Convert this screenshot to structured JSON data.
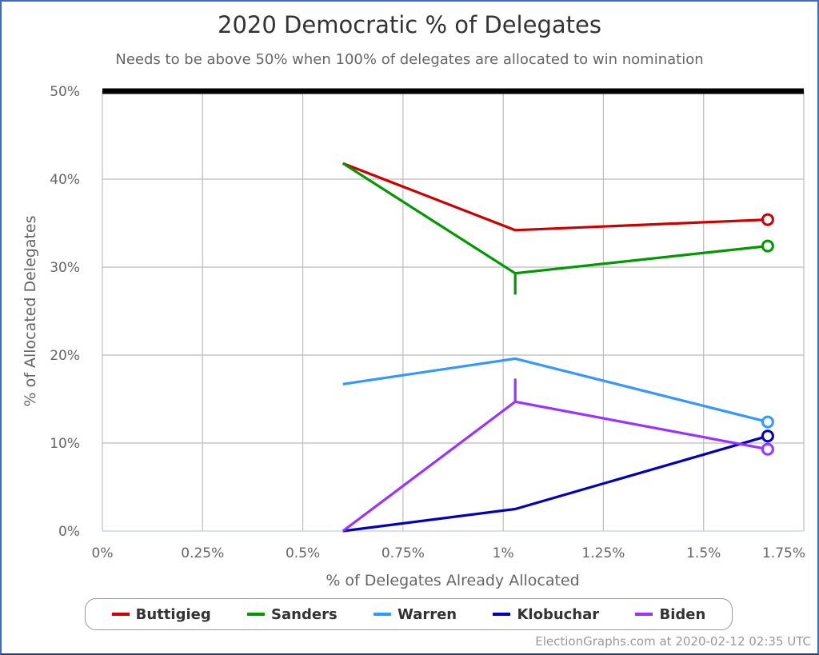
{
  "title": "2020 Democratic % of Delegates",
  "subtitle": "Needs to be above 50% when 100% of delegates are allocated to win nomination",
  "credit": "ElectionGraphs.com at 2020-02-12 02:35 UTC",
  "colors": {
    "buttigieg": "#cc0000",
    "sanders": "#009900",
    "warren": "#3399ff",
    "klobuchar": "#0000bb",
    "biden": "#9933ff",
    "threshold": "#000000",
    "grid": "#bbbbbb"
  },
  "legend": [
    {
      "name": "Buttigieg",
      "color": "#cc0000"
    },
    {
      "name": "Sanders",
      "color": "#009900"
    },
    {
      "name": "Warren",
      "color": "#3399ff"
    },
    {
      "name": "Klobuchar",
      "color": "#0000bb"
    },
    {
      "name": "Biden",
      "color": "#9933ff"
    }
  ],
  "axes": {
    "xlabel": "% of Delegates Already Allocated",
    "ylabel": "% of Allocated Delegates",
    "xticks": [
      "0%",
      "0.25%",
      "0.5%",
      "0.75%",
      "1%",
      "1.25%",
      "1.5%",
      "1.75%"
    ],
    "yticks": [
      "0%",
      "10%",
      "20%",
      "30%",
      "40%",
      "50%"
    ]
  },
  "chart_data": {
    "type": "line",
    "title": "2020 Democratic % of Delegates",
    "subtitle": "Needs to be above 50% when 100% of delegates are allocated to win nomination",
    "xlabel": "% of Delegates Already Allocated",
    "ylabel": "% of Allocated Delegates",
    "xlim": [
      0,
      1.75
    ],
    "ylim": [
      0,
      50
    ],
    "x_ticks": [
      0,
      0.25,
      0.5,
      0.75,
      1.0,
      1.25,
      1.5,
      1.75
    ],
    "y_ticks": [
      0,
      10,
      20,
      30,
      40,
      50
    ],
    "grid": true,
    "legend_position": "bottom",
    "threshold_line": {
      "y": 50,
      "label": "50%",
      "color": "#000000"
    },
    "x": [
      0.6,
      1.03,
      1.66
    ],
    "series": [
      {
        "name": "Buttigieg",
        "color": "#cc0000",
        "values": [
          41.8,
          34.2,
          35.4
        ]
      },
      {
        "name": "Sanders",
        "color": "#009900",
        "values": [
          41.8,
          29.3,
          32.4
        ],
        "range_marks": [
          {
            "x": 1.03,
            "from": 29.3,
            "to": 27.0
          }
        ]
      },
      {
        "name": "Warren",
        "color": "#3399ff",
        "values": [
          16.7,
          19.6,
          12.4
        ]
      },
      {
        "name": "Klobuchar",
        "color": "#0000bb",
        "values": [
          0.0,
          2.5,
          10.8
        ]
      },
      {
        "name": "Biden",
        "color": "#9933ff",
        "values": [
          0.0,
          14.7,
          9.3
        ],
        "range_marks": [
          {
            "x": 1.03,
            "from": 14.7,
            "to": 17.2
          }
        ]
      }
    ]
  }
}
